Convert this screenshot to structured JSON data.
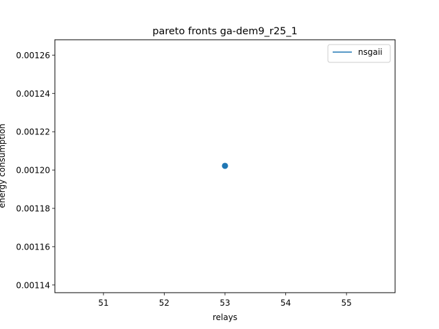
{
  "chart_data": {
    "type": "scatter",
    "title": "pareto fronts ga-dem9_r25_1",
    "xlabel": "relays",
    "ylabel": "energy consumption",
    "xlim": [
      50.2,
      55.8
    ],
    "ylim": [
      0.001136,
      0.001268
    ],
    "xticks": [
      51,
      52,
      53,
      54,
      55
    ],
    "yticks": [
      0.00114,
      0.00116,
      0.00118,
      0.0012,
      0.00122,
      0.00124,
      0.00126
    ],
    "xtick_labels": [
      "51",
      "52",
      "53",
      "54",
      "55"
    ],
    "ytick_labels": [
      "0.00114",
      "0.00116",
      "0.00118",
      "0.00120",
      "0.00122",
      "0.00124",
      "0.00126"
    ],
    "grid": false,
    "legend_placement": "top-right",
    "series": [
      {
        "name": "nsgaii",
        "color": "#1f77b4",
        "points": [
          {
            "x": 53,
            "y": 0.0012022
          }
        ]
      }
    ]
  }
}
